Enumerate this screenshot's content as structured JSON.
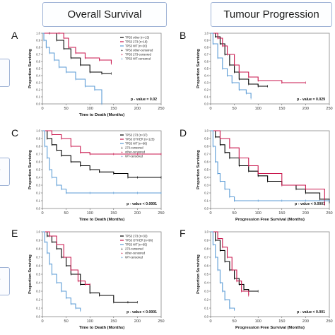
{
  "header": {
    "left_title": "Overall Survival",
    "right_title": "Tumour Progression"
  },
  "row_tabs": [
    "",
    "-",
    "-"
  ],
  "colors": {
    "tp53_other": "#000000",
    "tp53_273": "#c8164c",
    "tp53_wt": "#5b9bd5",
    "header_border": "#9fb3d6"
  },
  "chart_data": [
    {
      "panel": "A",
      "type": "line",
      "ylabel": "Proportion Surviving",
      "xlabel": "Time to Death (Months)",
      "xlim": [
        0,
        250
      ],
      "ylim": [
        0,
        1.0
      ],
      "xticks": [
        0,
        50,
        100,
        150,
        200,
        250
      ],
      "yticks": [
        0.0,
        0.1,
        0.2,
        0.3,
        0.4,
        0.5,
        0.6,
        0.7,
        0.8,
        0.9,
        1.0
      ],
      "pvalue": "p - value = 0.02",
      "legend_position": "top-right",
      "legend": [
        "TP53 other (n=13)",
        "TP53 273 (n=18)",
        "TP53 WT (n=20)",
        "TP53 other-censored",
        "TP53 273-censored",
        "TP53 WT-censored"
      ],
      "series": [
        {
          "name": "TP53 other (n=13)",
          "color_key": "tp53_other",
          "x": [
            0,
            15,
            30,
            45,
            60,
            80,
            100,
            125,
            145
          ],
          "y": [
            1.0,
            1.0,
            0.9,
            0.78,
            0.65,
            0.55,
            0.45,
            0.43,
            0.43
          ]
        },
        {
          "name": "TP53 273 (n=18)",
          "color_key": "tp53_273",
          "x": [
            0,
            35,
            45,
            55,
            70,
            90,
            120,
            145
          ],
          "y": [
            1.0,
            1.0,
            0.93,
            0.8,
            0.72,
            0.65,
            0.62,
            0.57
          ]
        },
        {
          "name": "TP53 WT (n=20)",
          "color_key": "tp53_wt",
          "x": [
            0,
            3,
            8,
            15,
            25,
            35,
            50,
            70,
            90,
            110,
            125
          ],
          "y": [
            1.0,
            0.9,
            0.8,
            0.72,
            0.62,
            0.52,
            0.45,
            0.35,
            0.25,
            0.2,
            0.0
          ]
        }
      ]
    },
    {
      "panel": "B",
      "type": "line",
      "ylabel": "Proportion Surviving",
      "xlabel": "",
      "xlim": [
        0,
        250
      ],
      "ylim": [
        0,
        1.0
      ],
      "xticks": [
        0,
        50,
        100,
        150,
        200,
        250
      ],
      "yticks": [
        0.0,
        0.1,
        0.2,
        0.3,
        0.4,
        0.5,
        0.6,
        0.7,
        0.8,
        0.9,
        1.0
      ],
      "pvalue": "p - value = 0.029",
      "legend_position": "top-right",
      "legend": [],
      "series": [
        {
          "name": "",
          "color_key": "tp53_other",
          "x": [
            0,
            10,
            20,
            30,
            40,
            50,
            60,
            80,
            100,
            120
          ],
          "y": [
            1.0,
            0.95,
            0.85,
            0.7,
            0.55,
            0.45,
            0.35,
            0.28,
            0.25,
            0.25
          ]
        },
        {
          "name": "",
          "color_key": "tp53_273",
          "x": [
            0,
            15,
            25,
            35,
            50,
            60,
            80,
            100,
            150,
            200
          ],
          "y": [
            1.0,
            0.93,
            0.82,
            0.7,
            0.55,
            0.45,
            0.38,
            0.33,
            0.3,
            0.3
          ]
        },
        {
          "name": "",
          "color_key": "tp53_wt",
          "x": [
            0,
            5,
            15,
            25,
            35,
            45,
            60,
            75,
            85
          ],
          "y": [
            1.0,
            0.85,
            0.65,
            0.5,
            0.4,
            0.3,
            0.2,
            0.15,
            0.08
          ]
        }
      ]
    },
    {
      "panel": "C",
      "type": "line",
      "ylabel": "Proportion Surviving",
      "xlabel": "Time to Death (Months)",
      "xlim": [
        0,
        250
      ],
      "ylim": [
        0,
        1.0
      ],
      "xticks": [
        0,
        50,
        100,
        150,
        200,
        250
      ],
      "yticks": [
        0.0,
        0.1,
        0.2,
        0.3,
        0.4,
        0.5,
        0.6,
        0.7,
        0.8,
        0.9,
        1.0
      ],
      "pvalue": "p - value < 0.0001",
      "legend_position": "top-right",
      "legend": [
        "TP53 273 (n=37)",
        "TP53 OTHER (n=125)",
        "TP53 WT (n=68)",
        "273-censored",
        "other-censored",
        "WT-censored"
      ],
      "series": [
        {
          "name": "TP53 OTHER (n=125)",
          "color_key": "tp53_other",
          "x": [
            0,
            10,
            20,
            30,
            40,
            60,
            80,
            100,
            120,
            150,
            180,
            200,
            250
          ],
          "y": [
            1.0,
            0.9,
            0.82,
            0.75,
            0.68,
            0.6,
            0.55,
            0.5,
            0.47,
            0.45,
            0.4,
            0.4,
            0.4
          ]
        },
        {
          "name": "TP53 273 (n=37)",
          "color_key": "tp53_273",
          "x": [
            0,
            20,
            40,
            60,
            80,
            100,
            150,
            200,
            250
          ],
          "y": [
            1.0,
            0.95,
            0.9,
            0.8,
            0.72,
            0.7,
            0.7,
            0.7,
            0.7
          ]
        },
        {
          "name": "TP53 WT (n=68)",
          "color_key": "tp53_wt",
          "x": [
            0,
            5,
            10,
            15,
            20,
            30,
            40,
            50,
            100,
            150,
            200,
            250
          ],
          "y": [
            1.0,
            0.8,
            0.65,
            0.5,
            0.4,
            0.3,
            0.25,
            0.2,
            0.2,
            0.2,
            0.2,
            0.2
          ]
        }
      ]
    },
    {
      "panel": "D",
      "type": "line",
      "ylabel": "Proportion Surviving",
      "xlabel": "Progression Free Survival (Months)",
      "xlim": [
        0,
        250
      ],
      "ylim": [
        0,
        1.0
      ],
      "xticks": [
        0,
        50,
        100,
        150,
        200,
        250
      ],
      "yticks": [
        0.0,
        0.1,
        0.2,
        0.3,
        0.4,
        0.5,
        0.6,
        0.7,
        0.8,
        0.9,
        1.0
      ],
      "pvalue": "p - value < 0.0001",
      "legend_position": "top-right",
      "legend": [],
      "series": [
        {
          "name": "",
          "color_key": "tp53_other",
          "x": [
            0,
            10,
            20,
            30,
            40,
            60,
            80,
            100,
            120,
            150,
            180,
            200,
            230,
            250
          ],
          "y": [
            1.0,
            0.92,
            0.82,
            0.72,
            0.65,
            0.55,
            0.48,
            0.42,
            0.35,
            0.3,
            0.25,
            0.2,
            0.12,
            0.08
          ]
        },
        {
          "name": "",
          "color_key": "tp53_273",
          "x": [
            0,
            20,
            40,
            60,
            80,
            100,
            150,
            200,
            240
          ],
          "y": [
            1.0,
            0.9,
            0.78,
            0.65,
            0.55,
            0.45,
            0.3,
            0.25,
            0.05
          ]
        },
        {
          "name": "",
          "color_key": "tp53_wt",
          "x": [
            0,
            5,
            10,
            15,
            20,
            30,
            40,
            50,
            100,
            150,
            200,
            250
          ],
          "y": [
            1.0,
            0.8,
            0.6,
            0.45,
            0.35,
            0.25,
            0.15,
            0.1,
            0.1,
            0.1,
            0.1,
            0.1
          ]
        }
      ]
    },
    {
      "panel": "E",
      "type": "line",
      "ylabel": "Proportion Surviving",
      "xlabel": "Time to Death (Months)",
      "xlim": [
        0,
        250
      ],
      "ylim": [
        0,
        1.0
      ],
      "xticks": [
        0,
        50,
        100,
        150,
        200,
        250
      ],
      "yticks": [
        0.0,
        0.1,
        0.2,
        0.3,
        0.4,
        0.5,
        0.6,
        0.7,
        0.8,
        0.9,
        1.0
      ],
      "pvalue": "p - value < 0.0001",
      "legend_position": "top-right",
      "legend": [
        "TP53 273 (n=33)",
        "TP53 OTHER (n=96)",
        "TP53 WT (n=65)",
        "273-censored",
        "other-censored",
        "WT-censored"
      ],
      "series": [
        {
          "name": "TP53 OTHER (n=96)",
          "color_key": "tp53_other",
          "x": [
            0,
            10,
            20,
            30,
            40,
            50,
            60,
            80,
            100,
            120,
            150,
            180,
            200
          ],
          "y": [
            1.0,
            0.95,
            0.88,
            0.8,
            0.7,
            0.6,
            0.5,
            0.38,
            0.28,
            0.25,
            0.17,
            0.17,
            0.17
          ]
        },
        {
          "name": "TP53 273 (n=33)",
          "color_key": "tp53_273",
          "x": [
            0,
            15,
            30,
            45,
            60,
            75,
            90,
            100
          ],
          "y": [
            1.0,
            0.95,
            0.85,
            0.7,
            0.55,
            0.42,
            0.38,
            0.38
          ]
        },
        {
          "name": "TP53 WT (n=65)",
          "color_key": "tp53_wt",
          "x": [
            0,
            5,
            10,
            15,
            20,
            30,
            40,
            50,
            60,
            70,
            80
          ],
          "y": [
            1.0,
            0.88,
            0.75,
            0.62,
            0.5,
            0.4,
            0.3,
            0.22,
            0.15,
            0.1,
            0.07
          ]
        }
      ]
    },
    {
      "panel": "F",
      "type": "line",
      "ylabel": "Proportion Surviving",
      "xlabel": "Progression Free Survival (Months)",
      "xlim": [
        0,
        250
      ],
      "ylim": [
        0,
        1.0
      ],
      "xticks": [
        0,
        50,
        100,
        150,
        200,
        250
      ],
      "yticks": [
        0.0,
        0.1,
        0.2,
        0.3,
        0.4,
        0.5,
        0.6,
        0.7,
        0.8,
        0.9,
        1.0
      ],
      "pvalue": "p - value < 0.001",
      "legend_position": "top-right",
      "legend": [],
      "series": [
        {
          "name": "",
          "color_key": "tp53_other",
          "x": [
            0,
            10,
            20,
            30,
            40,
            50,
            60,
            70,
            80,
            100
          ],
          "y": [
            1.0,
            0.9,
            0.78,
            0.65,
            0.55,
            0.45,
            0.38,
            0.32,
            0.3,
            0.3
          ]
        },
        {
          "name": "",
          "color_key": "tp53_273",
          "x": [
            0,
            15,
            25,
            35,
            45,
            55,
            65,
            80
          ],
          "y": [
            1.0,
            0.92,
            0.82,
            0.7,
            0.55,
            0.42,
            0.3,
            0.25
          ]
        },
        {
          "name": "",
          "color_key": "tp53_wt",
          "x": [
            0,
            5,
            10,
            15,
            20,
            25,
            30,
            40,
            50
          ],
          "y": [
            1.0,
            0.85,
            0.7,
            0.55,
            0.4,
            0.3,
            0.2,
            0.1,
            0.08
          ]
        }
      ]
    }
  ]
}
